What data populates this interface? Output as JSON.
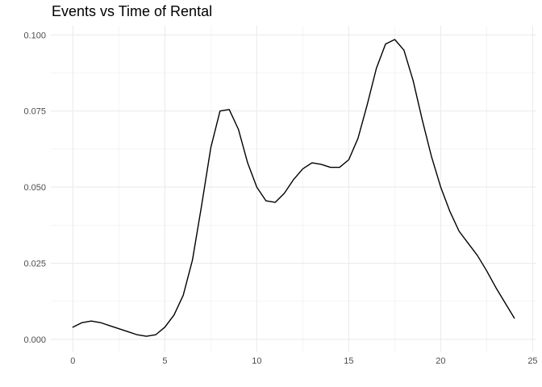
{
  "chart_data": {
    "type": "line",
    "title": "Events vs Time of Rental",
    "xlabel": "",
    "ylabel": "",
    "xlim": [
      -1.2,
      25.2
    ],
    "ylim": [
      -0.004,
      0.103
    ],
    "grid": true,
    "x_ticks": [
      0,
      5,
      10,
      15,
      20,
      25
    ],
    "x_tick_labels": [
      "0",
      "5",
      "10",
      "15",
      "20",
      "25"
    ],
    "y_ticks": [
      0.0,
      0.025,
      0.05,
      0.075,
      0.1
    ],
    "y_tick_labels": [
      "0.000",
      "0.025",
      "0.050",
      "0.075",
      "0.100"
    ],
    "series": [
      {
        "color": "#000000",
        "x": [
          0,
          0.5,
          1,
          1.5,
          2,
          2.5,
          3,
          3.5,
          4,
          4.5,
          5,
          5.5,
          6,
          6.5,
          7,
          7.5,
          8,
          8.5,
          9,
          9.5,
          10,
          10.5,
          11,
          11.5,
          12,
          12.5,
          13,
          13.5,
          14,
          14.5,
          15,
          15.5,
          16,
          16.5,
          17,
          17.5,
          18,
          18.5,
          19,
          19.5,
          20,
          20.5,
          21,
          21.5,
          22,
          22.5,
          23,
          23.5,
          24
        ],
        "y": [
          0.004,
          0.0055,
          0.006,
          0.0055,
          0.0045,
          0.0035,
          0.0025,
          0.0015,
          0.001,
          0.0015,
          0.004,
          0.008,
          0.0145,
          0.026,
          0.044,
          0.063,
          0.075,
          0.0755,
          0.069,
          0.058,
          0.05,
          0.0455,
          0.045,
          0.048,
          0.0525,
          0.056,
          0.058,
          0.0575,
          0.0565,
          0.0565,
          0.059,
          0.066,
          0.077,
          0.089,
          0.097,
          0.0985,
          0.095,
          0.085,
          0.072,
          0.06,
          0.05,
          0.042,
          0.0355,
          0.0315,
          0.0275,
          0.0225,
          0.017,
          0.012,
          0.007
        ]
      }
    ]
  }
}
